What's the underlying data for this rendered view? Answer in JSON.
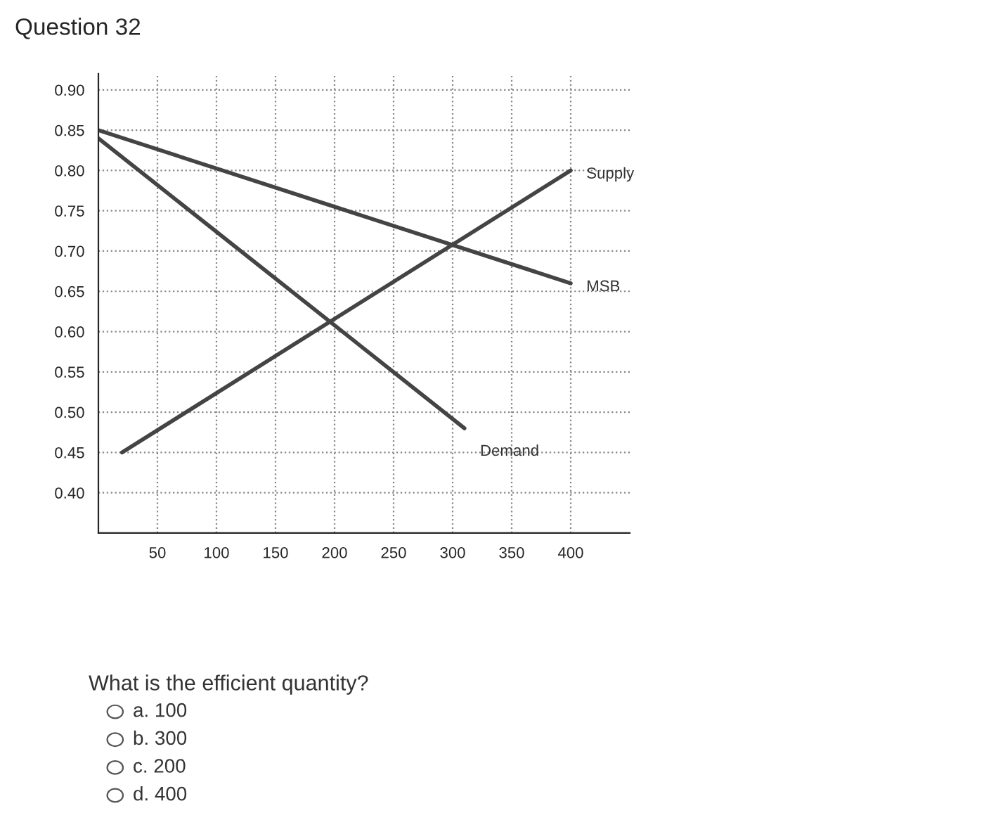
{
  "chart_data": {
    "type": "line",
    "title": "Question 32",
    "series": [
      {
        "name": "Supply",
        "color": "#444444",
        "x": [
          20,
          400
        ],
        "values": [
          0.45,
          0.8
        ]
      },
      {
        "name": "MSB",
        "color": "#444444",
        "x": [
          0,
          400
        ],
        "values": [
          0.85,
          0.66
        ]
      },
      {
        "name": "Demand",
        "color": "#444444",
        "x": [
          0,
          310
        ],
        "values": [
          0.84,
          0.48
        ]
      }
    ],
    "xlim": [
      0,
      450
    ],
    "xticks": [
      50,
      100,
      150,
      200,
      250,
      300,
      350,
      400
    ],
    "ylim": [
      0.35,
      0.92
    ],
    "yticks": [
      {
        "value": 0.4,
        "label": "0.40"
      },
      {
        "value": 0.45,
        "label": "0.45"
      },
      {
        "value": 0.5,
        "label": "0.50"
      },
      {
        "value": 0.55,
        "label": "0.55"
      },
      {
        "value": 0.6,
        "label": "0.60"
      },
      {
        "value": 0.65,
        "label": "0.65"
      },
      {
        "value": 0.7,
        "label": "0.70"
      },
      {
        "value": 0.75,
        "label": "0.75"
      },
      {
        "value": 0.8,
        "label": "0.80"
      },
      {
        "value": 0.85,
        "label": "0.85"
      },
      {
        "value": 0.9,
        "label": "0.90"
      }
    ],
    "grid": true,
    "marker": "none",
    "line_style": "solid",
    "annotations": [
      "What is the efficient quantity?",
      "a. 100",
      "b. 300",
      "c. 200",
      "d. 400"
    ]
  }
}
